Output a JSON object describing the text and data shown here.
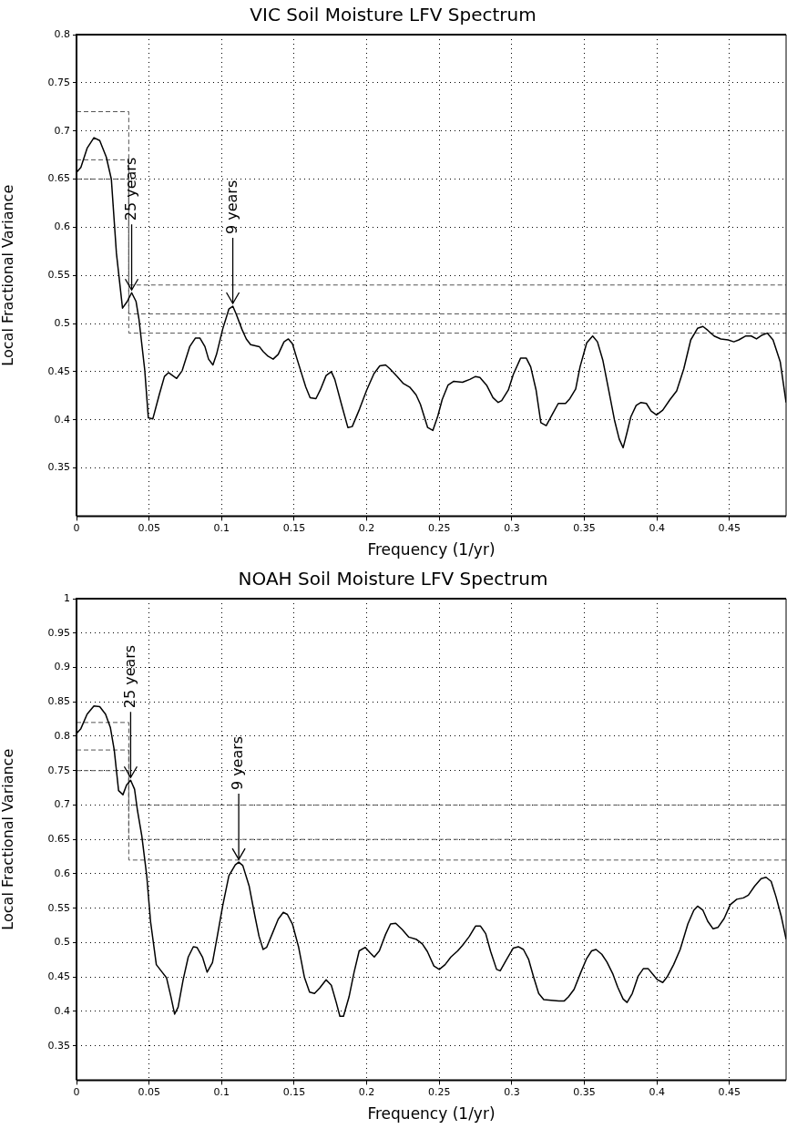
{
  "chart_data": [
    {
      "type": "line",
      "title": "VIC Soil Moisture LFV Spectrum",
      "xlabel": "Frequency (1/yr)",
      "ylabel": "Local Fractional Variance",
      "xlim": [
        0,
        0.489
      ],
      "ylim": [
        0.3,
        0.8
      ],
      "xticks": [
        0,
        0.05,
        0.1,
        0.15,
        0.2,
        0.25,
        0.3,
        0.35,
        0.4,
        0.45
      ],
      "yticks": [
        0.35,
        0.4,
        0.45,
        0.5,
        0.55,
        0.6,
        0.65,
        0.7,
        0.75,
        0.8
      ],
      "grid": true,
      "legend": false,
      "series": [
        {
          "color": "#000000",
          "x": [
            0,
            0.003,
            0.0073,
            0.012,
            0.016,
            0.0205,
            0.024,
            0.0275,
            0.0317,
            0.035,
            0.038,
            0.041,
            0.043,
            0.047,
            0.0495,
            0.0526,
            0.057,
            0.0606,
            0.0634,
            0.069,
            0.0728,
            0.078,
            0.082,
            0.085,
            0.0885,
            0.091,
            0.094,
            0.0965,
            0.1007,
            0.105,
            0.1077,
            0.11,
            0.114,
            0.117,
            0.12,
            0.126,
            0.1286,
            0.132,
            0.1355,
            0.139,
            0.143,
            0.146,
            0.1488,
            0.152,
            0.158,
            0.161,
            0.165,
            0.168,
            0.172,
            0.1756,
            0.178,
            0.1826,
            0.187,
            0.19,
            0.195,
            0.2,
            0.205,
            0.209,
            0.213,
            0.216,
            0.221,
            0.225,
            0.2296,
            0.234,
            0.237,
            0.242,
            0.2456,
            0.249,
            0.252,
            0.256,
            0.26,
            0.266,
            0.271,
            0.275,
            0.278,
            0.2826,
            0.287,
            0.2906,
            0.293,
            0.2976,
            0.301,
            0.306,
            0.31,
            0.313,
            0.3167,
            0.32,
            0.3237,
            0.328,
            0.332,
            0.337,
            0.34,
            0.344,
            0.347,
            0.3516,
            0.3557,
            0.359,
            0.3627,
            0.367,
            0.3707,
            0.374,
            0.3767,
            0.3794,
            0.382,
            0.3857,
            0.389,
            0.3927,
            0.396,
            0.3997,
            0.404,
            0.409,
            0.4136,
            0.4185,
            0.4233,
            0.428,
            0.4317,
            0.435,
            0.4394,
            0.444,
            0.449,
            0.453,
            0.4564,
            0.461,
            0.465,
            0.4686,
            0.4725,
            0.476,
            0.48,
            0.485,
            0.489
          ],
          "values": [
            0.657,
            0.662,
            0.682,
            0.693,
            0.69,
            0.673,
            0.65,
            0.573,
            0.516,
            0.523,
            0.532,
            0.523,
            0.505,
            0.452,
            0.402,
            0.401,
            0.426,
            0.445,
            0.449,
            0.443,
            0.451,
            0.476,
            0.485,
            0.485,
            0.476,
            0.463,
            0.457,
            0.468,
            0.494,
            0.515,
            0.518,
            0.51,
            0.494,
            0.484,
            0.478,
            0.476,
            0.471,
            0.466,
            0.463,
            0.468,
            0.481,
            0.484,
            0.479,
            0.463,
            0.434,
            0.423,
            0.422,
            0.431,
            0.446,
            0.45,
            0.442,
            0.416,
            0.392,
            0.393,
            0.411,
            0.431,
            0.448,
            0.456,
            0.457,
            0.453,
            0.445,
            0.438,
            0.434,
            0.426,
            0.416,
            0.392,
            0.389,
            0.404,
            0.421,
            0.436,
            0.44,
            0.439,
            0.442,
            0.445,
            0.444,
            0.436,
            0.423,
            0.418,
            0.42,
            0.431,
            0.447,
            0.464,
            0.464,
            0.455,
            0.431,
            0.397,
            0.394,
            0.406,
            0.417,
            0.417,
            0.422,
            0.432,
            0.455,
            0.48,
            0.487,
            0.481,
            0.462,
            0.429,
            0.4,
            0.38,
            0.371,
            0.387,
            0.403,
            0.415,
            0.418,
            0.417,
            0.409,
            0.405,
            0.41,
            0.421,
            0.43,
            0.453,
            0.483,
            0.495,
            0.497,
            0.493,
            0.487,
            0.484,
            0.483,
            0.481,
            0.483,
            0.487,
            0.487,
            0.484,
            0.488,
            0.49,
            0.483,
            0.46,
            0.418
          ]
        },
        {
          "color": "#555555",
          "line_style": "dashed",
          "x": [
            0,
            0.036,
            0.036,
            0.489
          ],
          "values": [
            0.72,
            0.72,
            0.54,
            0.54
          ]
        },
        {
          "color": "#555555",
          "line_style": "dashed",
          "x": [
            0,
            0.036,
            0.036,
            0.489
          ],
          "values": [
            0.67,
            0.67,
            0.51,
            0.51
          ]
        },
        {
          "color": "#555555",
          "line_style": "dashed",
          "x": [
            0,
            0.036,
            0.036,
            0.489
          ],
          "values": [
            0.65,
            0.65,
            0.49,
            0.49
          ]
        }
      ],
      "annotations": [
        {
          "text": "25 years",
          "x": 0.038,
          "y": 0.532
        },
        {
          "text": "9 years",
          "x": 0.1077,
          "y": 0.518
        }
      ]
    },
    {
      "type": "line",
      "title": "NOAH Soil Moisture LFV Spectrum",
      "xlabel": "Frequency (1/yr)",
      "ylabel": "Local Fractional Variance",
      "xlim": [
        0,
        0.489
      ],
      "ylim": [
        0.3,
        1
      ],
      "xticks": [
        0,
        0.05,
        0.1,
        0.15,
        0.2,
        0.25,
        0.3,
        0.35,
        0.4,
        0.45
      ],
      "yticks": [
        0.35,
        0.4,
        0.45,
        0.5,
        0.55,
        0.6,
        0.65,
        0.7,
        0.75,
        0.8,
        0.85,
        0.9,
        0.95,
        1
      ],
      "grid": true,
      "legend": false,
      "series": [
        {
          "color": "#000000",
          "x": [
            0,
            0.003,
            0.0073,
            0.012,
            0.016,
            0.02,
            0.0233,
            0.026,
            0.029,
            0.032,
            0.0345,
            0.0373,
            0.04,
            0.042,
            0.045,
            0.0484,
            0.051,
            0.055,
            0.059,
            0.062,
            0.065,
            0.0676,
            0.07,
            0.0735,
            0.077,
            0.0805,
            0.083,
            0.0868,
            0.09,
            0.0937,
            0.097,
            0.1007,
            0.105,
            0.1094,
            0.1118,
            0.1146,
            0.119,
            0.123,
            0.1258,
            0.1286,
            0.131,
            0.1355,
            0.139,
            0.1425,
            0.1453,
            0.1488,
            0.153,
            0.157,
            0.1606,
            0.164,
            0.1676,
            0.172,
            0.1756,
            0.179,
            0.1815,
            0.184,
            0.1878,
            0.1913,
            0.1948,
            0.199,
            0.2024,
            0.2052,
            0.2087,
            0.213,
            0.2164,
            0.22,
            0.2244,
            0.229,
            0.234,
            0.2383,
            0.2418,
            0.2463,
            0.25,
            0.254,
            0.258,
            0.2627,
            0.266,
            0.2707,
            0.275,
            0.2784,
            0.282,
            0.2854,
            0.2895,
            0.292,
            0.2965,
            0.301,
            0.3045,
            0.308,
            0.3115,
            0.315,
            0.3185,
            0.322,
            0.327,
            0.3324,
            0.336,
            0.339,
            0.3429,
            0.3474,
            0.3516,
            0.355,
            0.358,
            0.362,
            0.3655,
            0.3697,
            0.373,
            0.3767,
            0.3794,
            0.383,
            0.387,
            0.3906,
            0.394,
            0.3976,
            0.4003,
            0.404,
            0.4073,
            0.4115,
            0.416,
            0.4213,
            0.4254,
            0.428,
            0.4317,
            0.435,
            0.4387,
            0.442,
            0.4463,
            0.4505,
            0.455,
            0.4596,
            0.463,
            0.4673,
            0.4718,
            0.4752,
            0.4787,
            0.482,
            0.4857,
            0.489
          ],
          "values": [
            0.804,
            0.811,
            0.832,
            0.844,
            0.843,
            0.832,
            0.813,
            0.78,
            0.721,
            0.715,
            0.729,
            0.736,
            0.723,
            0.692,
            0.655,
            0.597,
            0.531,
            0.468,
            0.457,
            0.449,
            0.422,
            0.396,
            0.406,
            0.446,
            0.479,
            0.494,
            0.493,
            0.479,
            0.457,
            0.471,
            0.509,
            0.553,
            0.597,
            0.613,
            0.617,
            0.612,
            0.582,
            0.538,
            0.509,
            0.49,
            0.493,
            0.516,
            0.534,
            0.544,
            0.541,
            0.527,
            0.494,
            0.45,
            0.428,
            0.426,
            0.434,
            0.446,
            0.438,
            0.413,
            0.393,
            0.393,
            0.421,
            0.457,
            0.488,
            0.493,
            0.485,
            0.479,
            0.488,
            0.512,
            0.527,
            0.528,
            0.519,
            0.508,
            0.505,
            0.498,
            0.487,
            0.466,
            0.461,
            0.468,
            0.479,
            0.488,
            0.496,
            0.509,
            0.524,
            0.524,
            0.513,
            0.487,
            0.461,
            0.459,
            0.476,
            0.492,
            0.494,
            0.49,
            0.476,
            0.45,
            0.426,
            0.417,
            0.416,
            0.415,
            0.415,
            0.421,
            0.432,
            0.456,
            0.477,
            0.488,
            0.49,
            0.483,
            0.472,
            0.454,
            0.435,
            0.418,
            0.413,
            0.426,
            0.451,
            0.462,
            0.462,
            0.453,
            0.446,
            0.442,
            0.451,
            0.468,
            0.49,
            0.527,
            0.547,
            0.553,
            0.547,
            0.531,
            0.52,
            0.522,
            0.535,
            0.555,
            0.563,
            0.565,
            0.569,
            0.582,
            0.593,
            0.595,
            0.589,
            0.567,
            0.538,
            0.505
          ]
        },
        {
          "color": "#555555",
          "line_style": "dashed",
          "x": [
            0,
            0.036,
            0.036,
            0.489
          ],
          "values": [
            0.82,
            0.82,
            0.7,
            0.7
          ]
        },
        {
          "color": "#555555",
          "line_style": "dashed",
          "x": [
            0,
            0.036,
            0.036,
            0.489
          ],
          "values": [
            0.78,
            0.78,
            0.65,
            0.65
          ]
        },
        {
          "color": "#555555",
          "line_style": "dashed",
          "x": [
            0,
            0.036,
            0.036,
            0.489
          ],
          "values": [
            0.75,
            0.75,
            0.62,
            0.62
          ]
        }
      ],
      "annotations": [
        {
          "text": "25 years",
          "x": 0.0373,
          "y": 0.736
        },
        {
          "text": "9 years",
          "x": 0.1118,
          "y": 0.617
        }
      ]
    }
  ]
}
